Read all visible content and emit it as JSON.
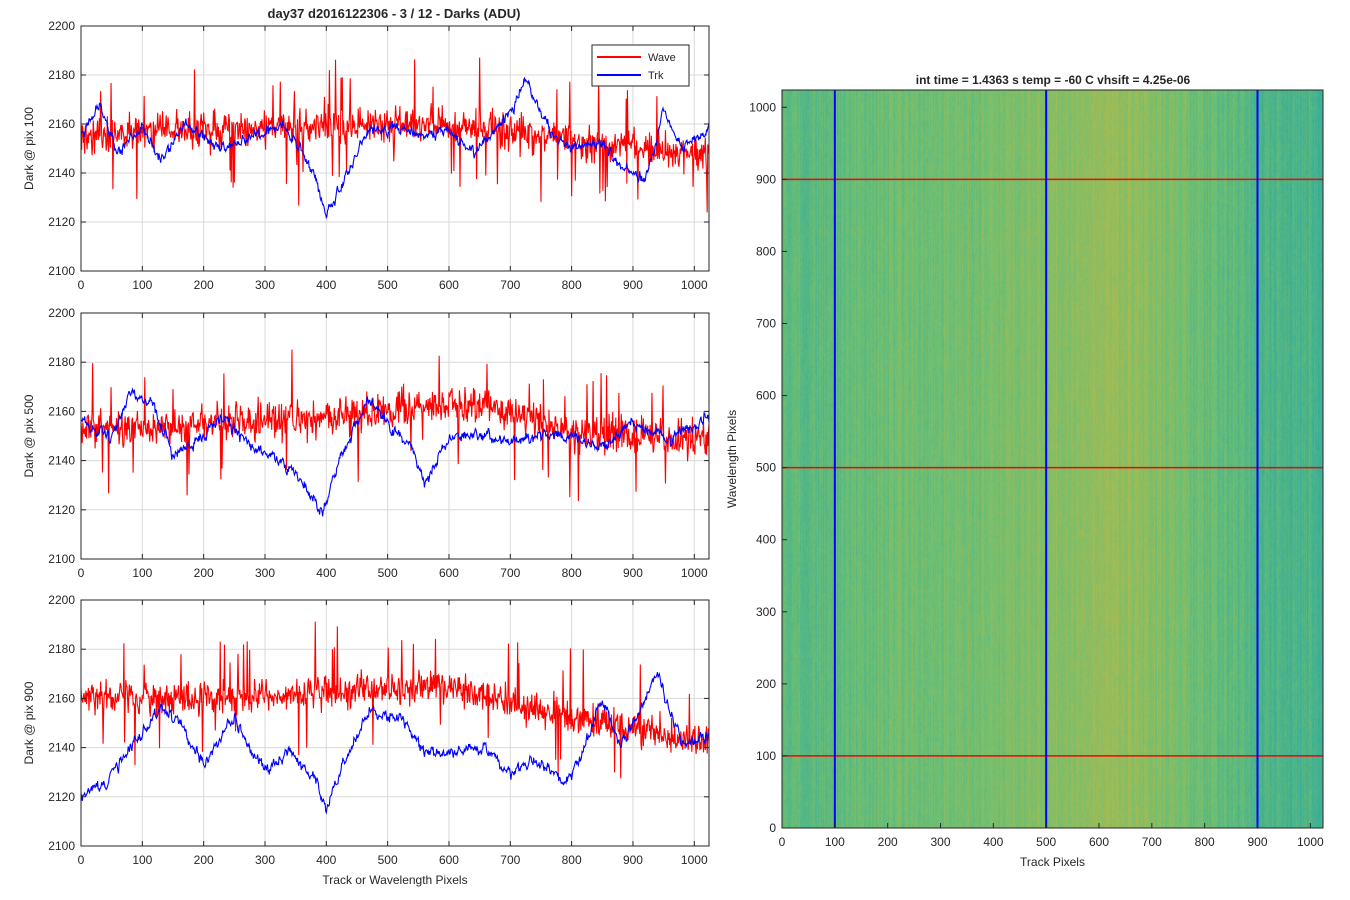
{
  "figure": {
    "title": "day37 d2016122306 - 3 / 12 - Darks (ADU)",
    "heatmap_title": "int time = 1.4363 s    temp = -60 C    vhsift = 4.25e-06"
  },
  "colors": {
    "wave": "#ff0000",
    "trk": "#0000ff",
    "grid": "#d9d9d9",
    "axis": "#262626",
    "heat_low": "#23a6a8",
    "heat_mid": "#6cbf74",
    "heat_high": "#c8b93e"
  },
  "chart_data": [
    {
      "type": "line",
      "ylabel": "Dark @ pix 100",
      "xlabel": "",
      "xlim": [
        0,
        1024
      ],
      "ylim": [
        2100,
        2200
      ],
      "xticks": [
        0,
        100,
        200,
        300,
        400,
        500,
        600,
        700,
        800,
        900,
        1000
      ],
      "yticks": [
        2100,
        2120,
        2140,
        2160,
        2180,
        2200
      ],
      "grid": true,
      "legend": {
        "placement": "top-right",
        "entries": [
          "Wave",
          "Trk"
        ]
      },
      "series": [
        {
          "name": "Wave",
          "color": "#ff0000",
          "mean": 2155,
          "noise": 11,
          "keypoints": [
            [
              0,
              2155
            ],
            [
              150,
              2157
            ],
            [
              300,
              2158
            ],
            [
              450,
              2160
            ],
            [
              600,
              2160
            ],
            [
              750,
              2155
            ],
            [
              900,
              2150
            ],
            [
              1024,
              2148
            ]
          ]
        },
        {
          "name": "Trk",
          "color": "#0000ff",
          "mean": 2155,
          "noise": 5,
          "keypoints": [
            [
              0,
              2155
            ],
            [
              30,
              2168
            ],
            [
              60,
              2148
            ],
            [
              100,
              2160
            ],
            [
              130,
              2145
            ],
            [
              170,
              2160
            ],
            [
              230,
              2150
            ],
            [
              280,
              2155
            ],
            [
              330,
              2160
            ],
            [
              380,
              2140
            ],
            [
              400,
              2122
            ],
            [
              430,
              2138
            ],
            [
              470,
              2158
            ],
            [
              520,
              2158
            ],
            [
              560,
              2155
            ],
            [
              600,
              2158
            ],
            [
              640,
              2148
            ],
            [
              700,
              2165
            ],
            [
              725,
              2177
            ],
            [
              770,
              2155
            ],
            [
              800,
              2150
            ],
            [
              850,
              2152
            ],
            [
              880,
              2142
            ],
            [
              920,
              2138
            ],
            [
              950,
              2165
            ],
            [
              980,
              2150
            ],
            [
              1024,
              2158
            ]
          ]
        }
      ]
    },
    {
      "type": "line",
      "ylabel": "Dark @ pix 500",
      "xlabel": "",
      "xlim": [
        0,
        1024
      ],
      "ylim": [
        2100,
        2200
      ],
      "xticks": [
        0,
        100,
        200,
        300,
        400,
        500,
        600,
        700,
        800,
        900,
        1000
      ],
      "yticks": [
        2100,
        2120,
        2140,
        2160,
        2180,
        2200
      ],
      "grid": true,
      "series": [
        {
          "name": "Wave",
          "color": "#ff0000",
          "mean": 2155,
          "noise": 11,
          "keypoints": [
            [
              0,
              2153
            ],
            [
              200,
              2155
            ],
            [
              400,
              2157
            ],
            [
              550,
              2162
            ],
            [
              650,
              2163
            ],
            [
              800,
              2152
            ],
            [
              1024,
              2148
            ]
          ]
        },
        {
          "name": "Trk",
          "color": "#0000ff",
          "mean": 2150,
          "noise": 5,
          "keypoints": [
            [
              0,
              2155
            ],
            [
              50,
              2150
            ],
            [
              80,
              2168
            ],
            [
              120,
              2162
            ],
            [
              150,
              2142
            ],
            [
              190,
              2148
            ],
            [
              230,
              2158
            ],
            [
              270,
              2148
            ],
            [
              320,
              2140
            ],
            [
              360,
              2132
            ],
            [
              395,
              2118
            ],
            [
              420,
              2140
            ],
            [
              470,
              2165
            ],
            [
              500,
              2155
            ],
            [
              540,
              2145
            ],
            [
              560,
              2130
            ],
            [
              600,
              2150
            ],
            [
              650,
              2150
            ],
            [
              700,
              2148
            ],
            [
              750,
              2150
            ],
            [
              800,
              2150
            ],
            [
              850,
              2145
            ],
            [
              900,
              2155
            ],
            [
              960,
              2148
            ],
            [
              1024,
              2158
            ]
          ]
        }
      ]
    },
    {
      "type": "line",
      "ylabel": "Dark @ pix 900",
      "xlabel": "Track or Wavelength Pixels",
      "xlim": [
        0,
        1024
      ],
      "ylim": [
        2100,
        2200
      ],
      "xticks": [
        0,
        100,
        200,
        300,
        400,
        500,
        600,
        700,
        800,
        900,
        1000
      ],
      "yticks": [
        2100,
        2120,
        2140,
        2160,
        2180,
        2200
      ],
      "grid": true,
      "series": [
        {
          "name": "Wave",
          "color": "#ff0000",
          "mean": 2160,
          "noise": 10,
          "keypoints": [
            [
              0,
              2160
            ],
            [
              200,
              2160
            ],
            [
              400,
              2162
            ],
            [
              600,
              2165
            ],
            [
              750,
              2155
            ],
            [
              850,
              2150
            ],
            [
              950,
              2145
            ],
            [
              1024,
              2142
            ]
          ]
        },
        {
          "name": "Trk",
          "color": "#0000ff",
          "mean": 2145,
          "noise": 5,
          "keypoints": [
            [
              0,
              2120
            ],
            [
              40,
              2125
            ],
            [
              80,
              2140
            ],
            [
              130,
              2155
            ],
            [
              160,
              2150
            ],
            [
              200,
              2133
            ],
            [
              250,
              2152
            ],
            [
              300,
              2130
            ],
            [
              340,
              2138
            ],
            [
              380,
              2128
            ],
            [
              400,
              2115
            ],
            [
              430,
              2135
            ],
            [
              470,
              2155
            ],
            [
              520,
              2152
            ],
            [
              560,
              2138
            ],
            [
              600,
              2138
            ],
            [
              660,
              2140
            ],
            [
              700,
              2128
            ],
            [
              740,
              2135
            ],
            [
              790,
              2125
            ],
            [
              820,
              2140
            ],
            [
              850,
              2160
            ],
            [
              880,
              2140
            ],
            [
              940,
              2170
            ],
            [
              980,
              2142
            ],
            [
              1024,
              2145
            ]
          ]
        }
      ]
    },
    {
      "type": "heatmap",
      "title": "int time = 1.4363 s    temp = -60 C    vhsift = 4.25e-06",
      "xlabel": "Track Pixels",
      "ylabel": "Wavelength Pixels",
      "xlim": [
        0,
        1024
      ],
      "ylim": [
        0,
        1024
      ],
      "xticks": [
        0,
        100,
        200,
        300,
        400,
        500,
        600,
        700,
        800,
        900,
        1000
      ],
      "yticks": [
        0,
        100,
        200,
        300,
        400,
        500,
        600,
        700,
        800,
        900,
        1000
      ],
      "vertical_lines": [
        100,
        500,
        900
      ],
      "horizontal_lines": [
        100,
        500,
        900
      ],
      "vertical_line_color": "#0000ff",
      "horizontal_line_color": "#ff0000",
      "column_profile": [
        [
          0,
          0.4
        ],
        [
          100,
          0.4
        ],
        [
          200,
          0.5
        ],
        [
          300,
          0.55
        ],
        [
          400,
          0.55
        ],
        [
          450,
          0.62
        ],
        [
          520,
          0.62
        ],
        [
          580,
          0.7
        ],
        [
          620,
          0.78
        ],
        [
          700,
          0.65
        ],
        [
          780,
          0.5
        ],
        [
          850,
          0.4
        ],
        [
          900,
          0.32
        ],
        [
          950,
          0.28
        ],
        [
          1024,
          0.25
        ]
      ]
    }
  ]
}
